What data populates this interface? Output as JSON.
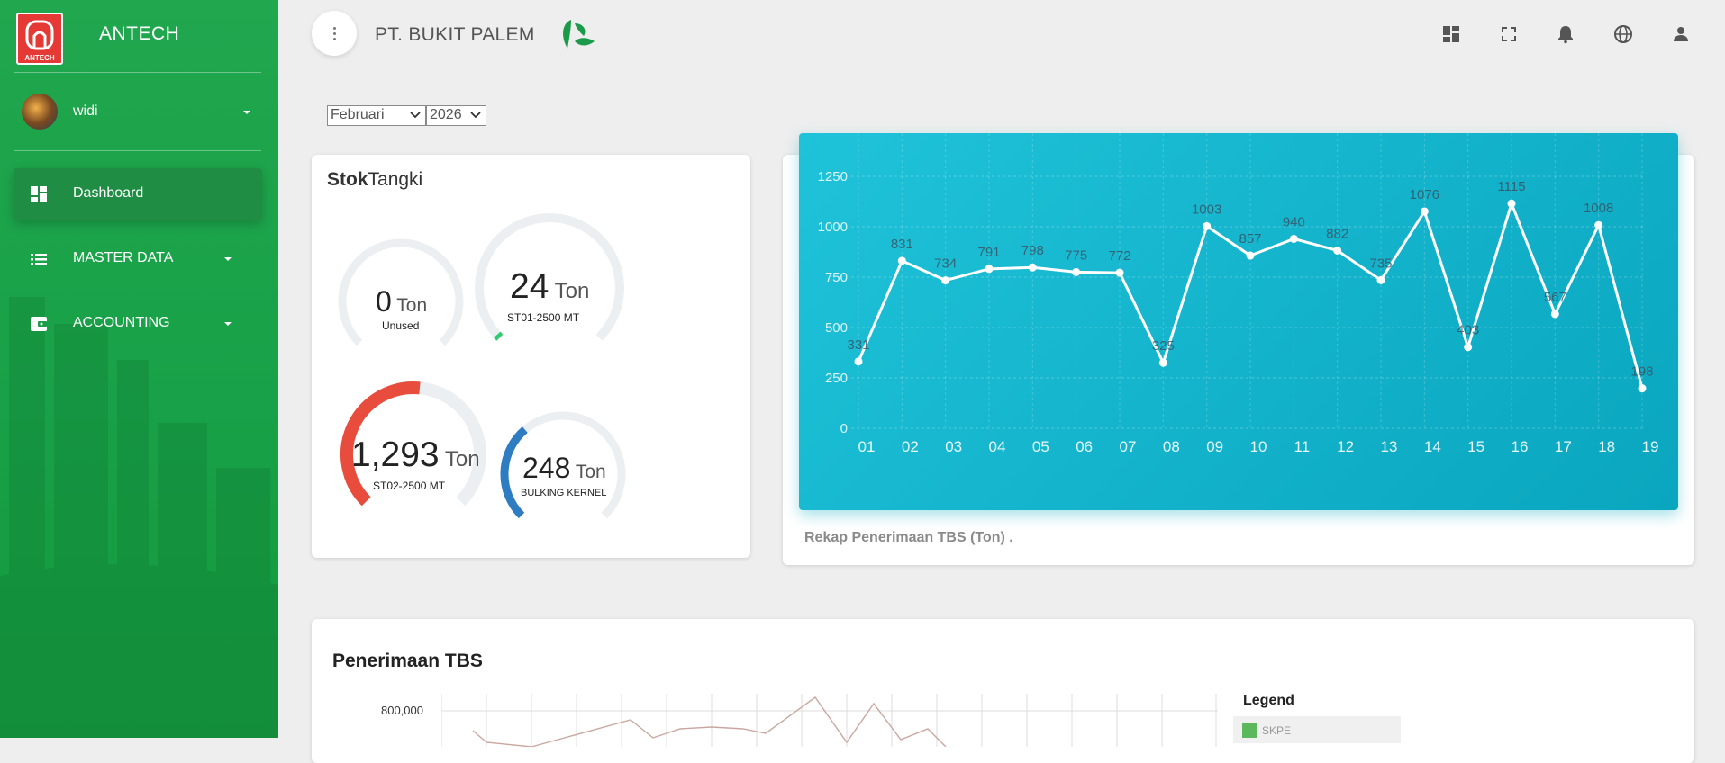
{
  "sidebar": {
    "logo_text": "ANTECH",
    "brand": "ANTECH",
    "user": {
      "name": "widi"
    },
    "nav": [
      {
        "label": "Dashboard",
        "active": true,
        "icon": "dashboard-icon"
      },
      {
        "label": "MASTER DATA",
        "active": false,
        "icon": "list-icon"
      },
      {
        "label": "ACCOUNTING",
        "active": false,
        "icon": "wallet-icon"
      }
    ]
  },
  "header": {
    "company": "PT. BUKIT PALEM",
    "icons": [
      "dashboard-icon",
      "fullscreen-icon",
      "bell-icon",
      "globe-icon",
      "person-icon"
    ]
  },
  "filters": {
    "month": "Februari",
    "year": "2026"
  },
  "stok_tangki": {
    "title_bold": "Stok",
    "title_rest": "Tangki",
    "tanks": [
      {
        "value": "0",
        "unit": "Ton",
        "name": "Unused",
        "fill": 0.0,
        "color": "#e0e0e0"
      },
      {
        "value": "24",
        "unit": "Ton",
        "name": "ST01-2500 MT",
        "fill": 0.01,
        "color": "#2ecc71"
      },
      {
        "value": "1,293",
        "unit": "Ton",
        "name": "ST02-2500 MT",
        "fill": 0.52,
        "color": "#e74c3c"
      },
      {
        "value": "248",
        "unit": "Ton",
        "name": "BULKING KERNEL",
        "fill": 0.35,
        "color": "#2e7cc1"
      }
    ]
  },
  "chart_data": {
    "type": "line",
    "title": "",
    "xlabel": "",
    "ylabel": "",
    "categories": [
      "01",
      "02",
      "03",
      "04",
      "05",
      "06",
      "07",
      "08",
      "09",
      "10",
      "11",
      "12",
      "13",
      "14",
      "15",
      "16",
      "17",
      "18",
      "19"
    ],
    "values": [
      331,
      831,
      734,
      791,
      798,
      775,
      772,
      325,
      1003,
      857,
      940,
      882,
      735,
      1076,
      403,
      1115,
      567,
      1008,
      198
    ],
    "yticks": [
      0,
      250,
      500,
      750,
      1000,
      1250
    ],
    "ylim": [
      0,
      1250
    ],
    "grid": true,
    "caption": "Rekap Penerimaan TBS (Ton) ."
  },
  "penerimaan": {
    "title": "Penerimaan TBS",
    "ytick_top": "800,000",
    "legend_title": "Legend",
    "legend_items": [
      {
        "label": "SKPE",
        "color": "#5cb85c"
      }
    ]
  }
}
